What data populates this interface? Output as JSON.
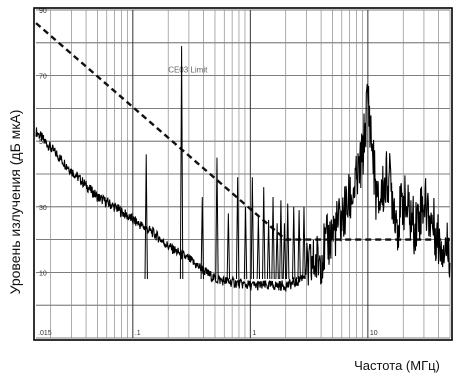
{
  "chart_data": {
    "type": "line",
    "title": "",
    "xlabel": "Частота (МГц)",
    "ylabel": "Уровень излучения (дБ мкА)",
    "x_scale": "log",
    "xlim": [
      0.015,
      50
    ],
    "ylim": [
      -10,
      90
    ],
    "x_ticks": [
      {
        "value": 0.015,
        "label": ".015"
      },
      {
        "value": 0.1,
        "label": ".1"
      },
      {
        "value": 1,
        "label": "1"
      },
      {
        "value": 10,
        "label": "10"
      }
    ],
    "y_ticks": [
      {
        "value": 10,
        "label": "10"
      },
      {
        "value": 30,
        "label": "30"
      },
      {
        "value": 50,
        "label": "50"
      },
      {
        "value": 70,
        "label": "70"
      },
      {
        "value": 90,
        "label": "90"
      }
    ],
    "grid": true,
    "annotations": [
      {
        "text": "CE03 Limit",
        "x": 0.2,
        "y": 71
      }
    ],
    "series": [
      {
        "name": "CE03 Limit",
        "style": "dashed",
        "color": "#111111",
        "x": [
          0.015,
          2,
          50
        ],
        "y": [
          86,
          20,
          20
        ]
      },
      {
        "name": "",
        "style": "solid",
        "color": "#000000",
        "x": [
          0.015,
          0.02,
          0.03,
          0.05,
          0.07,
          0.1,
          0.15,
          0.2,
          0.3,
          0.5,
          0.7,
          1.0,
          1.5,
          2.0,
          2.5,
          3.0,
          4.0,
          5.0,
          6.0,
          7.0,
          8.0,
          9.0,
          10.0,
          12.0,
          15.0,
          18.0,
          20.0,
          25.0,
          30.0,
          40.0,
          50.0
        ],
        "y": [
          53,
          48,
          41,
          33,
          30,
          26,
          22,
          18,
          14,
          8,
          7,
          6,
          6,
          6,
          7,
          10,
          15,
          22,
          26,
          32,
          37,
          45,
          64,
          30,
          40,
          25,
          32,
          24,
          32,
          20,
          17
        ]
      }
    ],
    "spikes": [
      {
        "x": 0.13,
        "y": 46
      },
      {
        "x": 0.26,
        "y": 79
      },
      {
        "x": 0.39,
        "y": 33
      },
      {
        "x": 0.52,
        "y": 45
      },
      {
        "x": 0.65,
        "y": 28
      },
      {
        "x": 0.78,
        "y": 39
      },
      {
        "x": 0.91,
        "y": 30
      },
      {
        "x": 1.04,
        "y": 39
      },
      {
        "x": 1.17,
        "y": 27
      },
      {
        "x": 1.3,
        "y": 36
      },
      {
        "x": 1.43,
        "y": 26
      },
      {
        "x": 1.56,
        "y": 33
      },
      {
        "x": 1.69,
        "y": 25
      },
      {
        "x": 1.82,
        "y": 32
      },
      {
        "x": 1.95,
        "y": 25
      },
      {
        "x": 2.08,
        "y": 31
      },
      {
        "x": 2.34,
        "y": 30
      },
      {
        "x": 2.6,
        "y": 29
      },
      {
        "x": 2.86,
        "y": 30
      }
    ]
  }
}
